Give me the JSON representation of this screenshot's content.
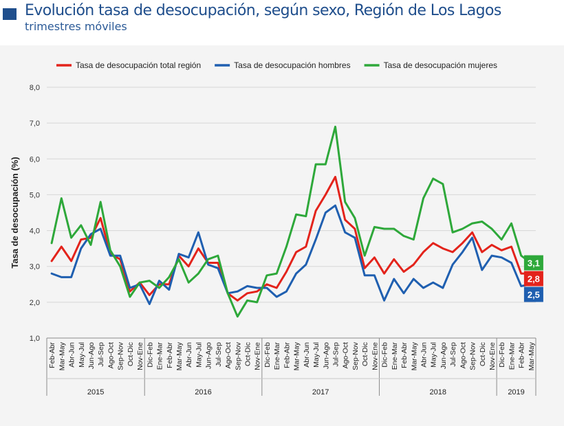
{
  "title": "Evolución tasa de desocupación, según sexo, Región de Los Lagos",
  "subtitle": "trimestres móviles",
  "chart_data": {
    "type": "line",
    "ylabel": "Tasa de desocupación (%)",
    "ylim": [
      1.0,
      8.0
    ],
    "yticks": [
      "1,0",
      "2,0",
      "3,0",
      "4,0",
      "5,0",
      "6,0",
      "7,0",
      "8,0"
    ],
    "grid": true,
    "legend_position": "top",
    "categories": [
      "Feb-Abr",
      "Mar-May",
      "Abr-Jun",
      "May-Jul",
      "Jun-Ago",
      "Jul-Sep",
      "Ago-Oct",
      "Sep-Nov",
      "Oct-Dic",
      "Nov-Ene",
      "Dic-Feb",
      "Ene-Mar",
      "Feb-Abr",
      "Mar-May",
      "Abr-Jun",
      "May-Jul",
      "Jun-Ago",
      "Jul-Sep",
      "Ago-Oct",
      "Sep-Nov",
      "Oct-Dic",
      "Nov-Ene",
      "Dic-Feb",
      "Ene-Mar",
      "Feb-Abr",
      "Mar-May",
      "Abr-Jun",
      "May-Jul",
      "Jun-Ago",
      "Jul-Sep",
      "Ago-Oct",
      "Sep-Nov",
      "Oct-Dic",
      "Nov-Ene",
      "Dic-Feb",
      "Ene-Mar",
      "Feb-Abr",
      "Mar-May",
      "Abr-Jun",
      "May-Jul",
      "Jun-Ago",
      "Jul-Sep",
      "Ago-Oct",
      "Sep-Nov",
      "Oct-Dic",
      "Nov-Ene",
      "Dic-Feb",
      "Ene-Mar",
      "Feb-Abr",
      "Mar-May"
    ],
    "years": [
      {
        "label": "2015",
        "start": 0,
        "end": 9
      },
      {
        "label": "2016",
        "start": 10,
        "end": 21
      },
      {
        "label": "2017",
        "start": 22,
        "end": 33
      },
      {
        "label": "2018",
        "start": 34,
        "end": 45
      },
      {
        "label": "2019",
        "start": 46,
        "end": 49
      }
    ],
    "series": [
      {
        "name": "Tasa de desocupación total región",
        "color": "#e3231b",
        "values": [
          3.15,
          3.55,
          3.15,
          3.75,
          3.8,
          4.35,
          3.35,
          3.2,
          2.3,
          2.55,
          2.2,
          2.5,
          2.5,
          3.3,
          3.0,
          3.5,
          3.1,
          3.1,
          2.25,
          2.05,
          2.25,
          2.3,
          2.5,
          2.4,
          2.85,
          3.4,
          3.55,
          4.55,
          5.0,
          5.5,
          4.3,
          4.05,
          2.95,
          3.25,
          2.8,
          3.2,
          2.85,
          3.05,
          3.4,
          3.65,
          3.5,
          3.4,
          3.65,
          3.95,
          3.4,
          3.6,
          3.45,
          3.55,
          2.8,
          2.8
        ],
        "end_label": "2,8"
      },
      {
        "name": "Tasa de desocupación hombres",
        "color": "#1f5fb0",
        "values": [
          2.8,
          2.7,
          2.7,
          3.5,
          3.9,
          4.05,
          3.3,
          3.3,
          2.4,
          2.5,
          1.95,
          2.6,
          2.35,
          3.35,
          3.25,
          3.95,
          3.05,
          2.95,
          2.25,
          2.3,
          2.45,
          2.4,
          2.4,
          2.15,
          2.3,
          2.8,
          3.05,
          3.75,
          4.5,
          4.7,
          3.95,
          3.8,
          2.75,
          2.75,
          2.05,
          2.65,
          2.25,
          2.65,
          2.4,
          2.55,
          2.4,
          3.05,
          3.4,
          3.8,
          2.9,
          3.3,
          3.25,
          3.1,
          2.45,
          2.5
        ],
        "end_label": "2,5"
      },
      {
        "name": "Tasa de desocupación mujeres",
        "color": "#2ea83a",
        "values": [
          3.65,
          4.9,
          3.8,
          4.15,
          3.6,
          4.8,
          3.45,
          3.0,
          2.15,
          2.55,
          2.6,
          2.4,
          2.7,
          3.2,
          2.55,
          2.8,
          3.2,
          3.3,
          2.25,
          1.6,
          2.05,
          2.0,
          2.75,
          2.8,
          3.55,
          4.45,
          4.4,
          5.85,
          5.85,
          6.9,
          4.8,
          4.35,
          3.3,
          4.1,
          4.05,
          4.05,
          3.85,
          3.75,
          4.9,
          5.45,
          5.3,
          3.95,
          4.05,
          4.2,
          4.25,
          4.05,
          3.75,
          4.2,
          3.3,
          3.1
        ],
        "end_label": "3,1"
      }
    ]
  }
}
